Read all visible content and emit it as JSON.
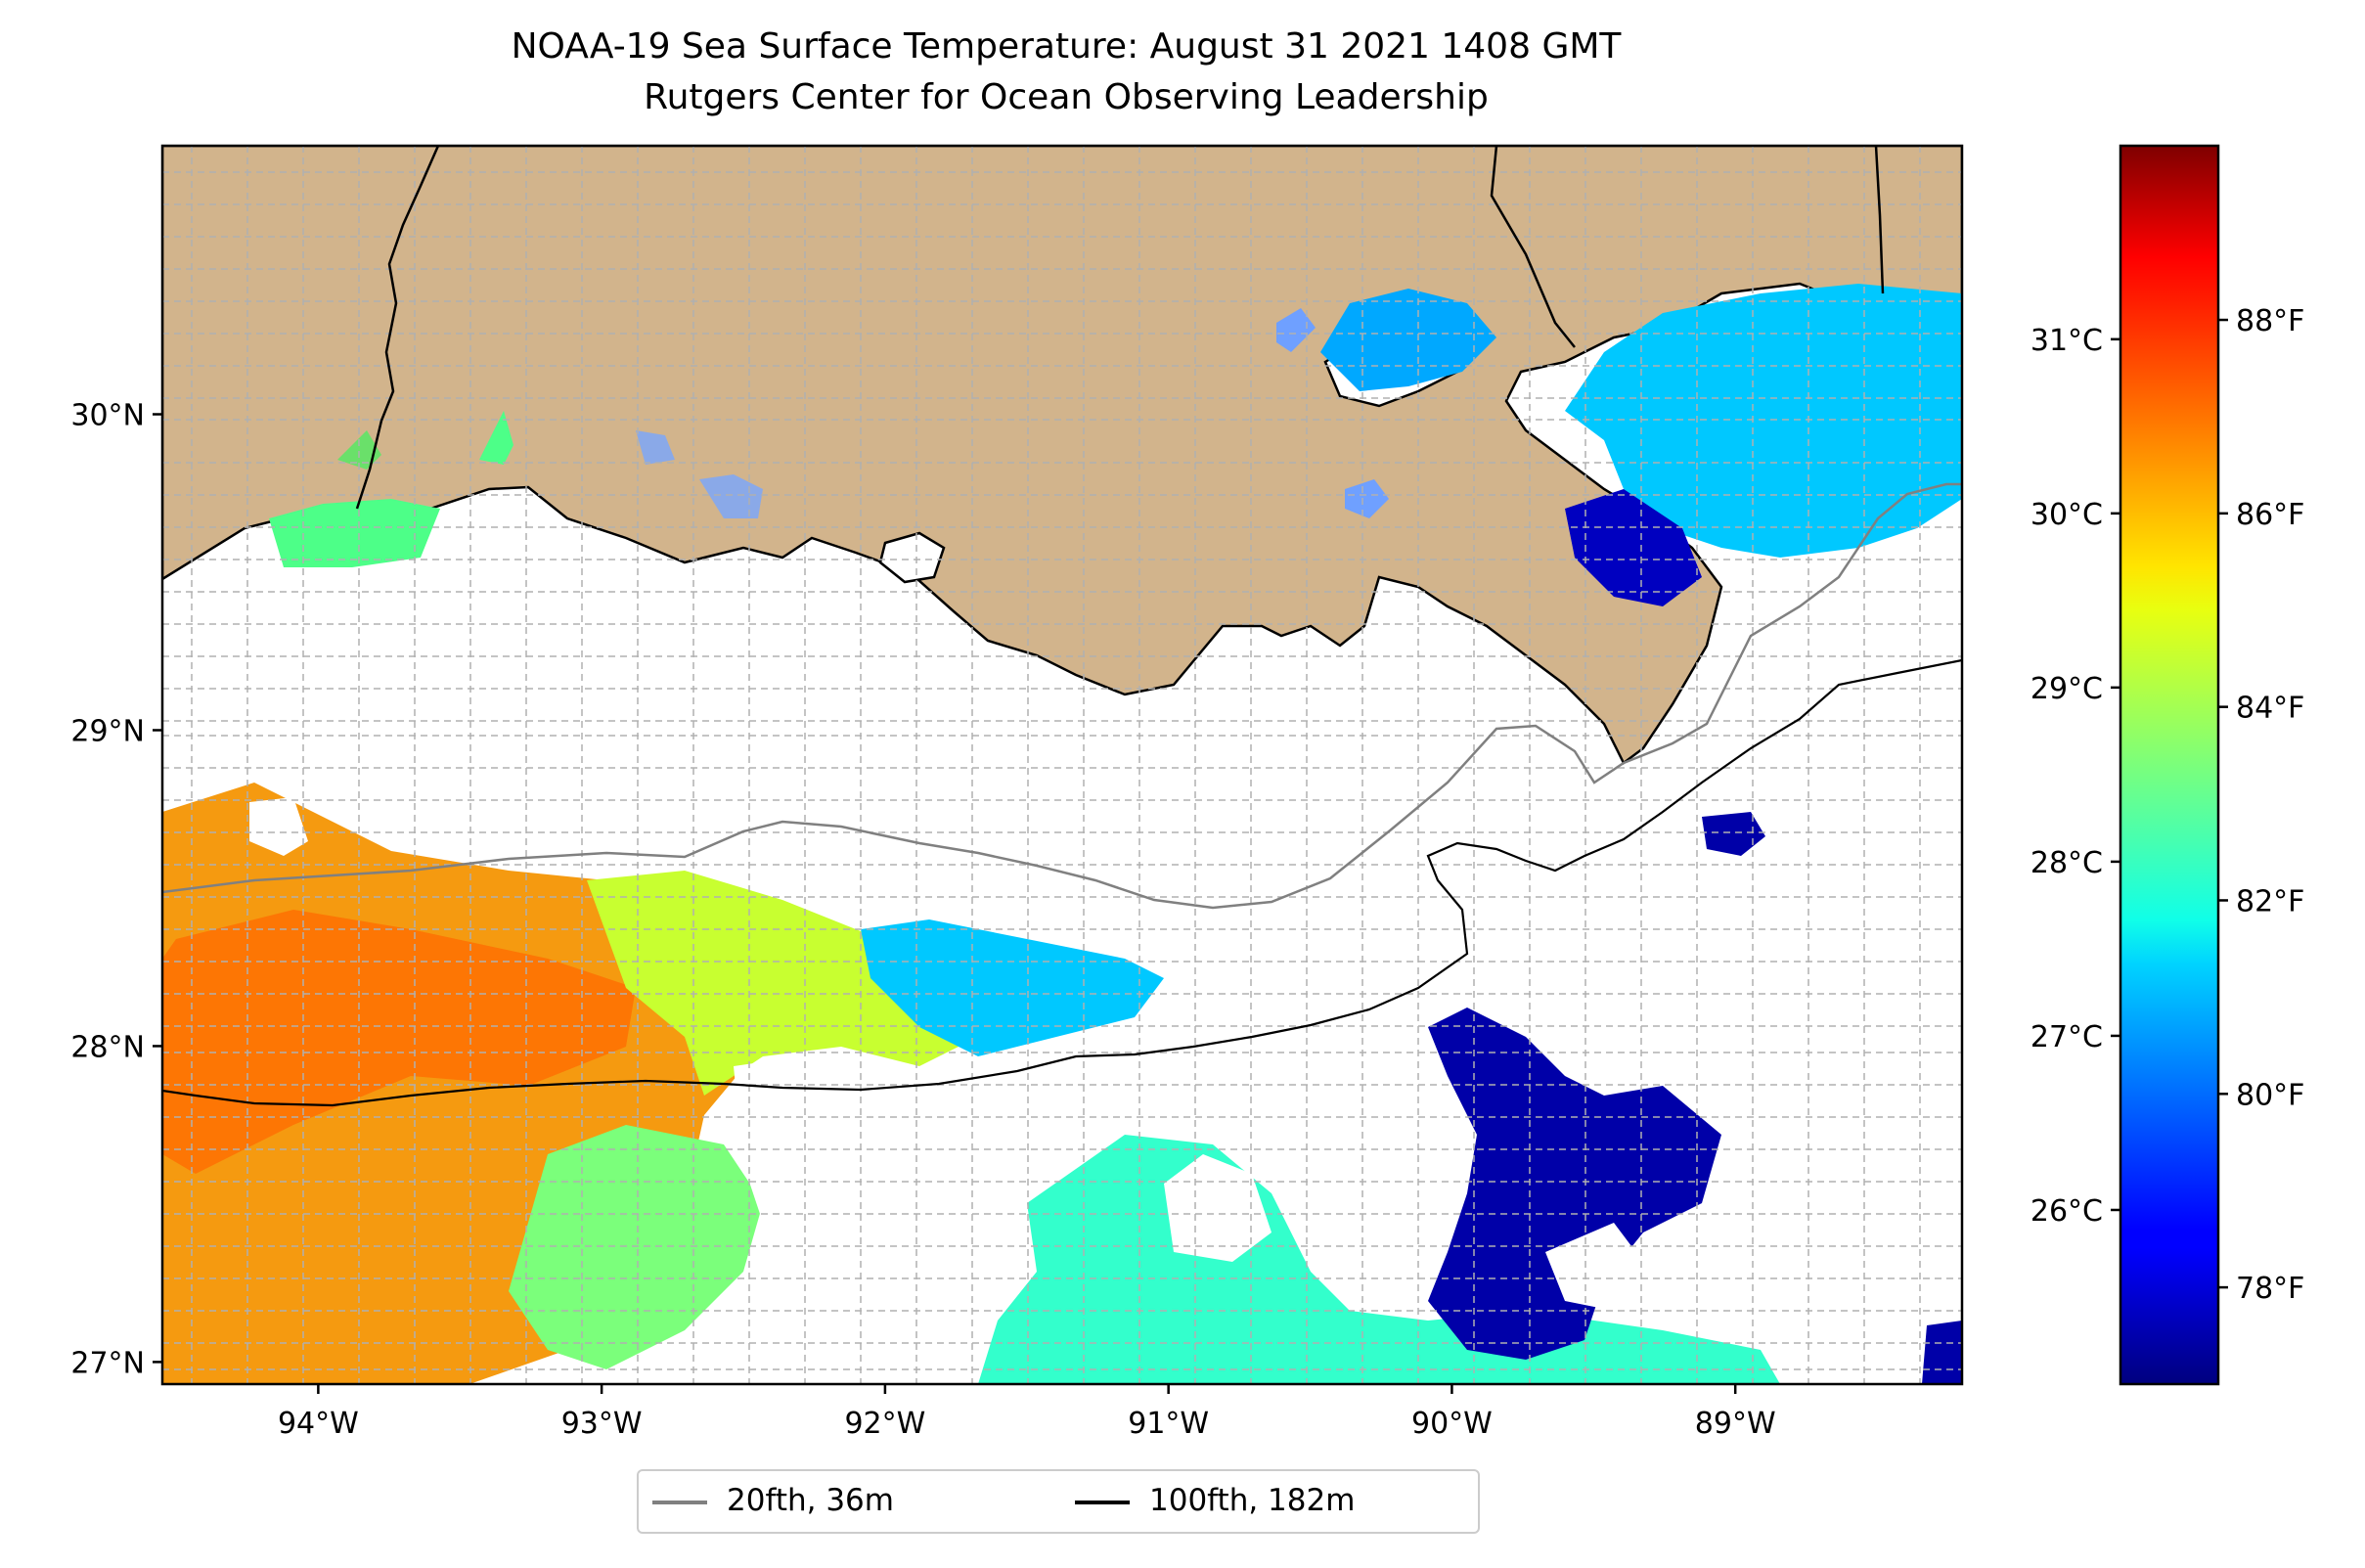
{
  "title": "NOAA-19 Sea Surface Temperature: August 31 2021 1408 GMT",
  "subtitle": "Rutgers Center for Ocean Observing Leadership",
  "map": {
    "lon_range": [
      -94.55,
      -88.2
    ],
    "lat_range": [
      26.93,
      30.85
    ],
    "lat_ticks": [
      {
        "lat": 30,
        "label": "30°N"
      },
      {
        "lat": 29,
        "label": "29°N"
      },
      {
        "lat": 28,
        "label": "28°N"
      },
      {
        "lat": 27,
        "label": "27°N"
      }
    ],
    "lon_ticks": [
      {
        "lon": -94,
        "label": "94°W"
      },
      {
        "lon": -93,
        "label": "93°W"
      },
      {
        "lon": -92,
        "label": "92°W"
      },
      {
        "lon": -91,
        "label": "91°W"
      },
      {
        "lon": -90,
        "label": "90°W"
      },
      {
        "lon": -89,
        "label": "89°W"
      }
    ],
    "grid": true,
    "land_color": "#d2b48c",
    "ocean_color": "#ffffff"
  },
  "colorbar": {
    "colormap": "jet",
    "range_f": [
      77,
      89.8
    ],
    "celsius_ticks": [
      {
        "value": 31,
        "label": "31°C"
      },
      {
        "value": 30,
        "label": "30°C"
      },
      {
        "value": 29,
        "label": "29°C"
      },
      {
        "value": 28,
        "label": "28°C"
      },
      {
        "value": 27,
        "label": "27°C"
      },
      {
        "value": 26,
        "label": "26°C"
      }
    ],
    "fahrenheit_ticks": [
      {
        "value": 88,
        "label": "88°F"
      },
      {
        "value": 86,
        "label": "86°F"
      },
      {
        "value": 84,
        "label": "84°F"
      },
      {
        "value": 82,
        "label": "82°F"
      },
      {
        "value": 80,
        "label": "80°F"
      },
      {
        "value": 78,
        "label": "78°F"
      }
    ]
  },
  "legend": {
    "items": [
      {
        "label": "20fth, 36m",
        "color": "#808080"
      },
      {
        "label": "100fth, 182m",
        "color": "#000000"
      }
    ],
    "placement": "bottom-center"
  }
}
